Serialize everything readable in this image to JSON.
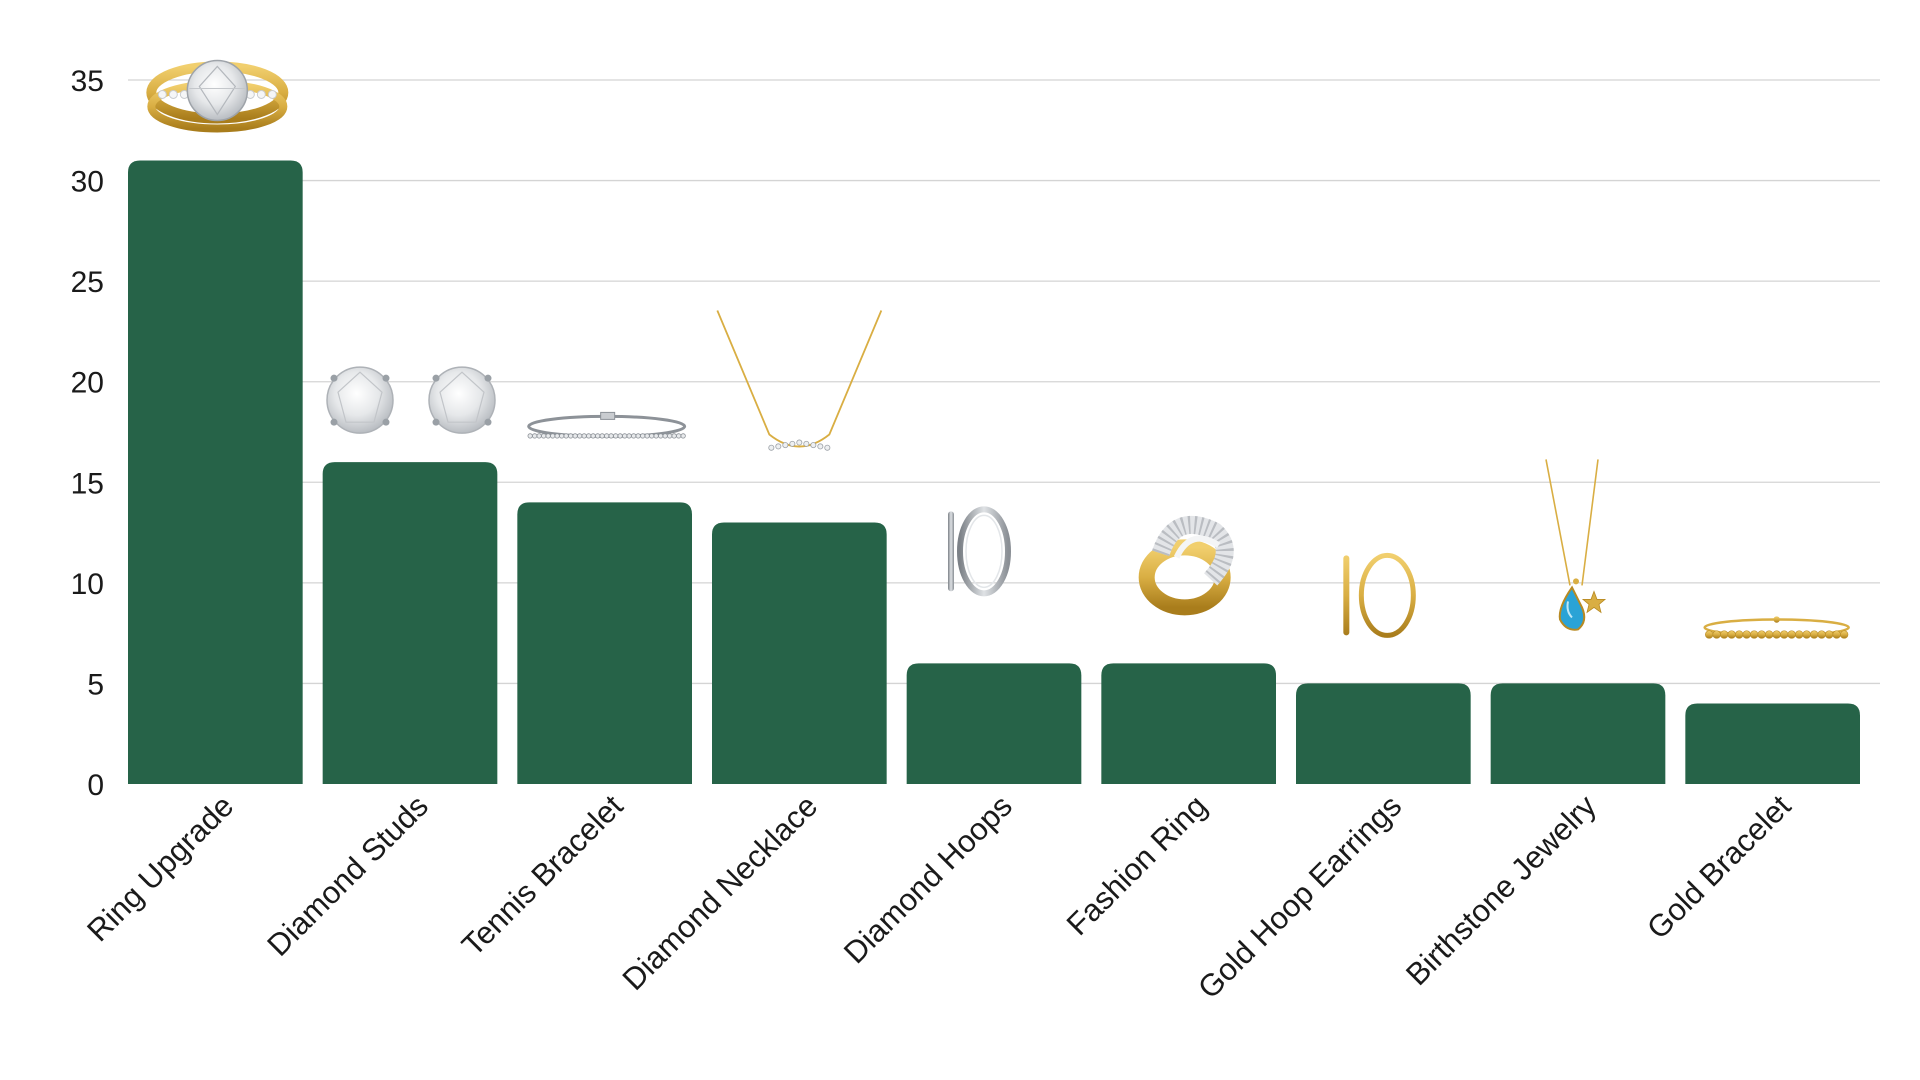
{
  "chart_data": {
    "type": "bar",
    "title": "",
    "xlabel": "",
    "ylabel": "",
    "ylim": [
      0,
      35
    ],
    "yticks": [
      0,
      5,
      10,
      15,
      20,
      25,
      30,
      35
    ],
    "grid": true,
    "categories": [
      "Ring Upgrade",
      "Diamond Studs",
      "Tennis Bracelet",
      "Diamond Necklace",
      "Diamond Hoops",
      "Fashion Ring",
      "Gold Hoop Earrings",
      "Birthstone Jewelry",
      "Gold Bracelet"
    ],
    "values": [
      31,
      16,
      14,
      13,
      6,
      6,
      5,
      5,
      4
    ],
    "icons": [
      "solitaire-ring-with-band-icon",
      "diamond-stud-earrings-icon",
      "tennis-bracelet-icon",
      "diamond-necklace-icon",
      "diamond-hoop-earrings-icon",
      "pave-knot-ring-icon",
      "gold-hoop-earrings-icon",
      "birthstone-pendant-icon",
      "gold-bead-bracelet-icon"
    ]
  },
  "colors": {
    "bar": "#266348",
    "grid": "#d4d4d4",
    "text": "#1a1a1a",
    "gold": "#d9ae43",
    "gold_dark": "#b88a22",
    "silver": "#a8adb2",
    "silver_dark": "#7c8187",
    "diamond": "#eef0f2",
    "topaz": "#2aa3d6"
  }
}
